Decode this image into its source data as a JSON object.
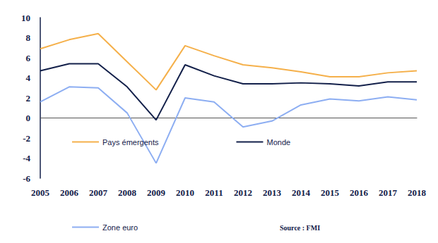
{
  "chart_data": {
    "type": "line",
    "categories": [
      "2005",
      "2006",
      "2007",
      "2008",
      "2009",
      "2010",
      "2011",
      "2012",
      "2013",
      "2014",
      "2015",
      "2016",
      "2017",
      "2018"
    ],
    "series": [
      {
        "name": "Pays émergents",
        "color": "#f5b04a",
        "values": [
          6.9,
          7.8,
          8.4,
          5.6,
          2.8,
          7.2,
          6.2,
          5.3,
          5.0,
          4.6,
          4.1,
          4.1,
          4.5,
          4.7
        ]
      },
      {
        "name": "Monde",
        "color": "#13204a",
        "values": [
          4.7,
          5.4,
          5.4,
          3.1,
          -0.2,
          5.3,
          4.2,
          3.4,
          3.4,
          3.5,
          3.4,
          3.2,
          3.6,
          3.6
        ]
      },
      {
        "name": "Zone euro",
        "color": "#8daef2",
        "values": [
          1.6,
          3.1,
          3.0,
          0.5,
          -4.5,
          2.0,
          1.6,
          -0.9,
          -0.3,
          1.3,
          1.9,
          1.7,
          2.1,
          1.8
        ]
      }
    ],
    "ylim": [
      -6,
      10
    ],
    "yticks": [
      -6,
      -4,
      -2,
      0,
      2,
      4,
      6,
      8,
      10
    ],
    "grid": false,
    "legend": "bottom",
    "annotations": [
      "Source : FMI"
    ]
  }
}
